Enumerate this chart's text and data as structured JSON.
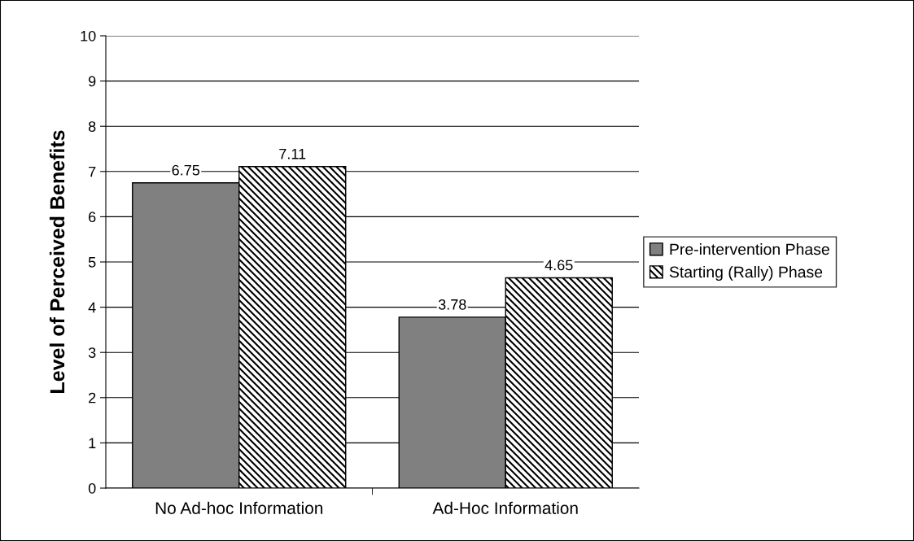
{
  "chart_data": {
    "type": "bar",
    "ylabel": "Level of Perceived Benefits",
    "categories": [
      "No Ad-hoc Information",
      "Ad-Hoc Information"
    ],
    "series": [
      {
        "name": "Pre-intervention Phase",
        "color": "#808080",
        "values": [
          6.75,
          3.78
        ]
      },
      {
        "name": "Starting (Rally) Phase",
        "color": "#000000",
        "values": [
          7.11,
          4.65
        ]
      }
    ],
    "ylim": [
      0,
      10
    ],
    "yticks": [
      0,
      1,
      2,
      3,
      4,
      5,
      6,
      7,
      8,
      9,
      10
    ],
    "grid": "y",
    "legend": "right",
    "data_labels": true
  }
}
